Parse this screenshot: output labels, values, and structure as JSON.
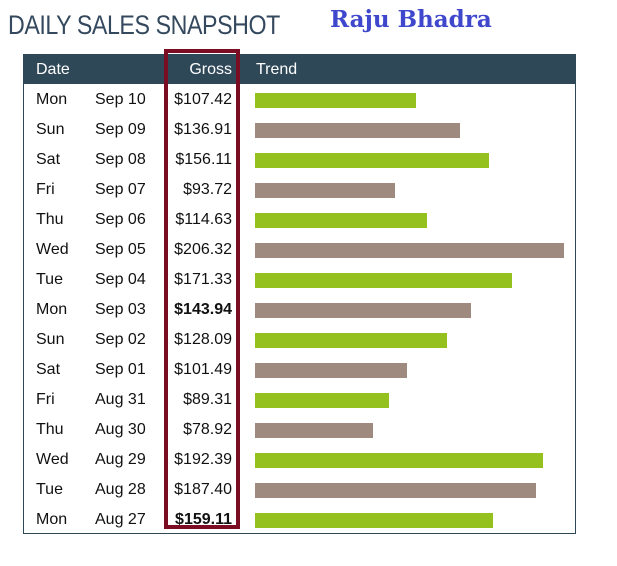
{
  "title": "DAILY SALES SNAPSHOT",
  "author": "Raju Bhadra",
  "columns": {
    "date": "Date",
    "gross": "Gross",
    "trend": "Trend"
  },
  "colors": {
    "header_bg": "#2f4858",
    "bar_even": "#95c11e",
    "bar_odd": "#9e8a7e",
    "highlight_border": "#7b0d22",
    "author": "#3f48cc"
  },
  "chart_data": {
    "type": "bar",
    "orientation": "horizontal",
    "title": "DAILY SALES SNAPSHOT",
    "grid": false,
    "rows": [
      {
        "day": "Mon",
        "date": "Sep 10",
        "gross": "$107.42",
        "value": 107.42,
        "bold": false
      },
      {
        "day": "Sun",
        "date": "Sep 09",
        "gross": "$136.91",
        "value": 136.91,
        "bold": false
      },
      {
        "day": "Sat",
        "date": "Sep 08",
        "gross": "$156.11",
        "value": 156.11,
        "bold": false
      },
      {
        "day": "Fri",
        "date": "Sep 07",
        "gross": "$93.72",
        "value": 93.72,
        "bold": false
      },
      {
        "day": "Thu",
        "date": "Sep 06",
        "gross": "$114.63",
        "value": 114.63,
        "bold": false
      },
      {
        "day": "Wed",
        "date": "Sep 05",
        "gross": "$206.32",
        "value": 206.32,
        "bold": false
      },
      {
        "day": "Tue",
        "date": "Sep 04",
        "gross": "$171.33",
        "value": 171.33,
        "bold": false
      },
      {
        "day": "Mon",
        "date": "Sep 03",
        "gross": "$143.94",
        "value": 143.94,
        "bold": true
      },
      {
        "day": "Sun",
        "date": "Sep 02",
        "gross": "$128.09",
        "value": 128.09,
        "bold": false
      },
      {
        "day": "Sat",
        "date": "Sep 01",
        "gross": "$101.49",
        "value": 101.49,
        "bold": false
      },
      {
        "day": "Fri",
        "date": "Aug 31",
        "gross": "$89.31",
        "value": 89.31,
        "bold": false
      },
      {
        "day": "Thu",
        "date": "Aug 30",
        "gross": "$78.92",
        "value": 78.92,
        "bold": false
      },
      {
        "day": "Wed",
        "date": "Aug 29",
        "gross": "$192.39",
        "value": 192.39,
        "bold": false
      },
      {
        "day": "Tue",
        "date": "Aug 28",
        "gross": "$187.40",
        "value": 187.4,
        "bold": false
      },
      {
        "day": "Mon",
        "date": "Aug 27",
        "gross": "$159.11",
        "value": 159.11,
        "bold": true
      }
    ]
  }
}
